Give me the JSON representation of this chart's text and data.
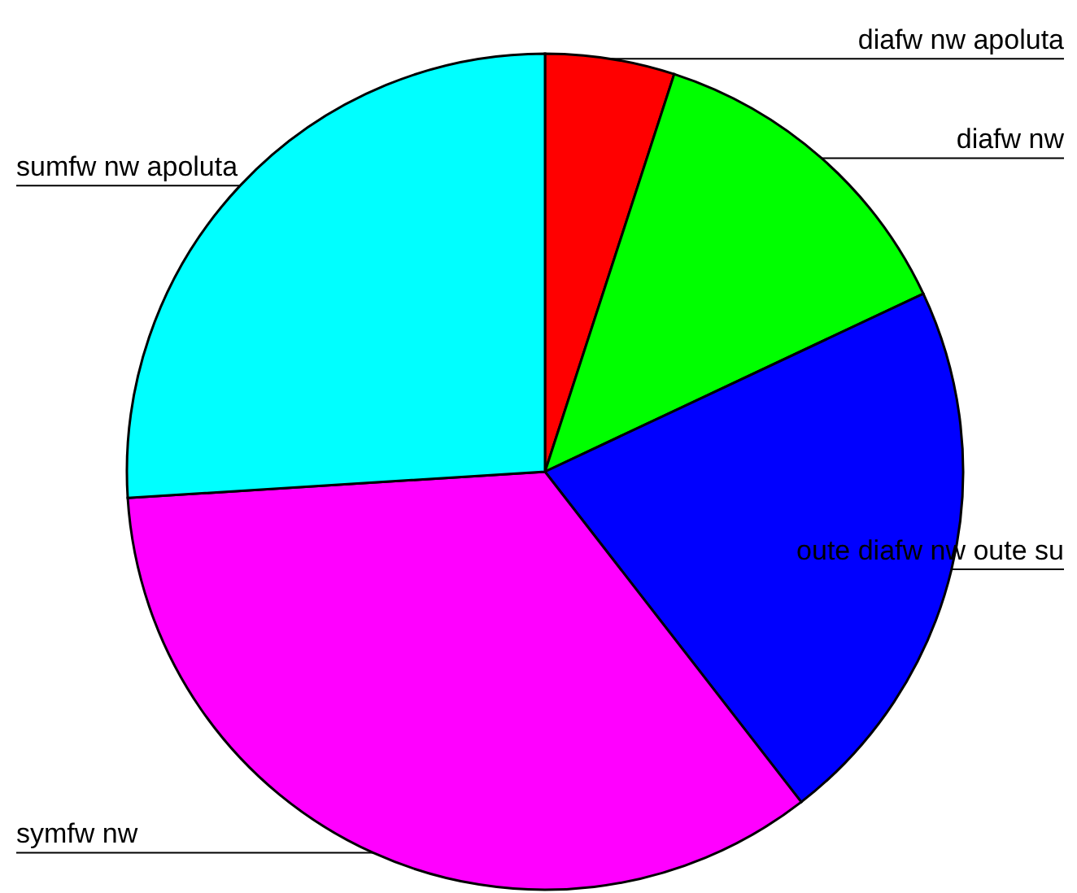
{
  "chart_data": {
    "type": "pie",
    "categories": [
      "diafw nw  apoluta",
      "diafw nw",
      "oute diafw nw  oute su",
      "symfw nw",
      "sumfw nw  apoluta"
    ],
    "values": [
      5,
      13,
      21.5,
      34.5,
      26
    ],
    "colors": [
      "#ff0000",
      "#00ff00",
      "#0000ff",
      "#ff00ff",
      "#00ffff"
    ]
  }
}
